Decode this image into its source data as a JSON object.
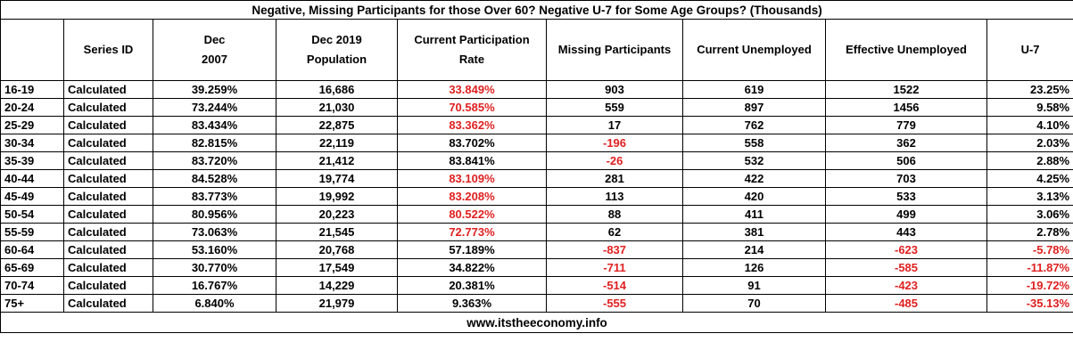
{
  "title": "Negative, Missing Participants for those Over 60?  Negative U-7 for Some Age Groups? (Thousands)",
  "columns": [
    "",
    "Series ID",
    "Dec\n2007",
    "Dec 2019  Population",
    "Current Participation Rate",
    "Missing Participants",
    "Current Unemployed",
    "Effective Unemployed",
    "U-7"
  ],
  "rows": [
    {
      "age": "16-19",
      "series": "Calculated",
      "dec2007": "39.259%",
      "pop": "16,686",
      "cpr": "33.849%",
      "cpr_red": true,
      "missing": "903",
      "missing_red": false,
      "unemp": "619",
      "eff": "1522",
      "eff_red": false,
      "u7": "23.25%",
      "u7_red": false
    },
    {
      "age": "20-24",
      "series": "Calculated",
      "dec2007": "73.244%",
      "pop": "21,030",
      "cpr": "70.585%",
      "cpr_red": true,
      "missing": "559",
      "missing_red": false,
      "unemp": "897",
      "eff": "1456",
      "eff_red": false,
      "u7": "9.58%",
      "u7_red": false
    },
    {
      "age": "25-29",
      "series": "Calculated",
      "dec2007": "83.434%",
      "pop": "22,875",
      "cpr": "83.362%",
      "cpr_red": true,
      "missing": "17",
      "missing_red": false,
      "unemp": "762",
      "eff": "779",
      "eff_red": false,
      "u7": "4.10%",
      "u7_red": false
    },
    {
      "age": "30-34",
      "series": "Calculated",
      "dec2007": "82.815%",
      "pop": "22,119",
      "cpr": "83.702%",
      "cpr_red": false,
      "missing": "-196",
      "missing_red": true,
      "unemp": "558",
      "eff": "362",
      "eff_red": false,
      "u7": "2.03%",
      "u7_red": false
    },
    {
      "age": "35-39",
      "series": "Calculated",
      "dec2007": "83.720%",
      "pop": "21,412",
      "cpr": "83.841%",
      "cpr_red": false,
      "missing": "-26",
      "missing_red": true,
      "unemp": "532",
      "eff": "506",
      "eff_red": false,
      "u7": "2.88%",
      "u7_red": false
    },
    {
      "age": "40-44",
      "series": "Calculated",
      "dec2007": "84.528%",
      "pop": "19,774",
      "cpr": "83.109%",
      "cpr_red": true,
      "missing": "281",
      "missing_red": false,
      "unemp": "422",
      "eff": "703",
      "eff_red": false,
      "u7": "4.25%",
      "u7_red": false
    },
    {
      "age": "45-49",
      "series": "Calculated",
      "dec2007": "83.773%",
      "pop": "19,992",
      "cpr": "83.208%",
      "cpr_red": true,
      "missing": "113",
      "missing_red": false,
      "unemp": "420",
      "eff": "533",
      "eff_red": false,
      "u7": "3.13%",
      "u7_red": false
    },
    {
      "age": "50-54",
      "series": "Calculated",
      "dec2007": "80.956%",
      "pop": "20,223",
      "cpr": "80.522%",
      "cpr_red": true,
      "missing": "88",
      "missing_red": false,
      "unemp": "411",
      "eff": "499",
      "eff_red": false,
      "u7": "3.06%",
      "u7_red": false
    },
    {
      "age": "55-59",
      "series": "Calculated",
      "dec2007": "73.063%",
      "pop": "21,545",
      "cpr": "72.773%",
      "cpr_red": true,
      "missing": "62",
      "missing_red": false,
      "unemp": "381",
      "eff": "443",
      "eff_red": false,
      "u7": "2.78%",
      "u7_red": false
    },
    {
      "age": "60-64",
      "series": "Calculated",
      "dec2007": "53.160%",
      "pop": "20,768",
      "cpr": "57.189%",
      "cpr_red": false,
      "missing": "-837",
      "missing_red": true,
      "unemp": "214",
      "eff": "-623",
      "eff_red": true,
      "u7": "-5.78%",
      "u7_red": true
    },
    {
      "age": "65-69",
      "series": "Calculated",
      "dec2007": "30.770%",
      "pop": "17,549",
      "cpr": "34.822%",
      "cpr_red": false,
      "missing": "-711",
      "missing_red": true,
      "unemp": "126",
      "eff": "-585",
      "eff_red": true,
      "u7": "-11.87%",
      "u7_red": true
    },
    {
      "age": "70-74",
      "series": "Calculated",
      "dec2007": "16.767%",
      "pop": "14,229",
      "cpr": "20.381%",
      "cpr_red": false,
      "missing": "-514",
      "missing_red": true,
      "unemp": "91",
      "eff": "-423",
      "eff_red": true,
      "u7": "-19.72%",
      "u7_red": true
    },
    {
      "age": "75+",
      "series": "Calculated",
      "dec2007": "6.840%",
      "pop": "21,979",
      "cpr": "9.363%",
      "cpr_red": false,
      "missing": "-555",
      "missing_red": true,
      "unemp": "70",
      "eff": "-485",
      "eff_red": true,
      "u7": "-35.13%",
      "u7_red": true
    }
  ],
  "footer": "www.itstheeconomy.info",
  "colors": {
    "negative": "#e02020",
    "text": "#000000",
    "background": "#ffffff"
  }
}
